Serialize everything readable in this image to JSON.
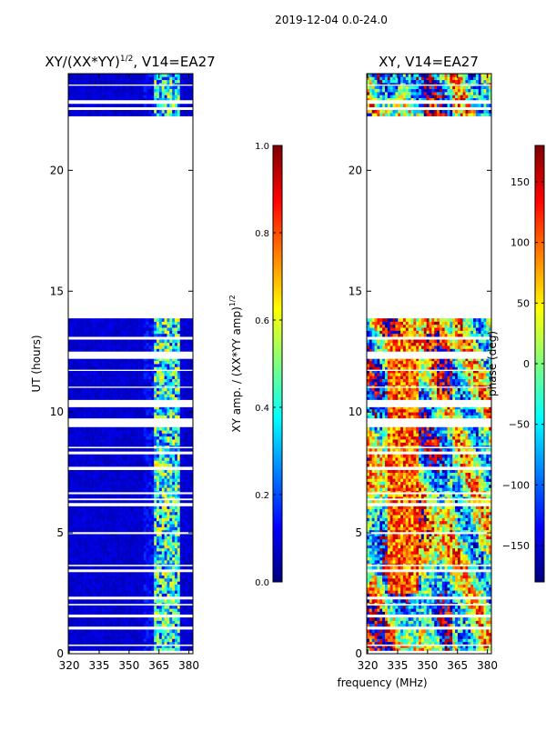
{
  "suptitle": "2019-12-04 0.0-24.0",
  "colors": {
    "jet": [
      "#00007f",
      "#0000ff",
      "#007fff",
      "#00ffff",
      "#7fff7f",
      "#ffff00",
      "#ff7f00",
      "#ff0000",
      "#7f0000"
    ],
    "background": "#ffffff",
    "axis": "#000000"
  },
  "chart_data": [
    {
      "type": "heatmap",
      "title_main": "XY/(XX*YY)",
      "title_sup": "1/2",
      "title_rest": ", V14=EA27",
      "xlabel": "",
      "ylabel": "UT (hours)",
      "xlim": [
        319.5,
        382
      ],
      "ylim": [
        0,
        24
      ],
      "x_ticks": [
        320,
        335,
        350,
        365,
        380
      ],
      "y_ticks": [
        0,
        5,
        10,
        15,
        20
      ],
      "gaps_hours": [
        [
          0.05,
          0.12
        ],
        [
          0.32,
          0.38
        ],
        [
          1.05,
          1.12
        ],
        [
          1.55,
          1.62
        ],
        [
          2.0,
          2.06
        ],
        [
          2.25,
          2.35
        ],
        [
          3.4,
          3.47
        ],
        [
          3.62,
          3.68
        ],
        [
          4.95,
          5.03
        ],
        [
          6.1,
          6.2
        ],
        [
          6.35,
          6.42
        ],
        [
          6.6,
          6.68
        ],
        [
          7.6,
          7.7
        ],
        [
          8.3,
          8.36
        ],
        [
          8.5,
          8.56
        ],
        [
          9.4,
          9.7
        ],
        [
          10.2,
          10.5
        ],
        [
          11.0,
          11.05
        ],
        [
          11.7,
          11.75
        ],
        [
          12.2,
          12.5
        ],
        [
          13.0,
          13.1
        ],
        [
          13.9,
          22.2
        ],
        [
          22.5,
          22.6
        ],
        [
          22.8,
          22.9
        ],
        [
          23.5,
          23.55
        ]
      ],
      "features": "low amplitude background with bright bands near 363-375 MHz",
      "colorbar": {
        "label_main": "XY amp. / (XX*YY amp)",
        "label_sup": "1/2",
        "range": [
          0.0,
          1.0
        ],
        "ticks": [
          "0.0",
          "0.2",
          "0.4",
          "0.6",
          "0.8",
          "1.0"
        ],
        "tick_values": [
          0.0,
          0.2,
          0.4,
          0.6,
          0.8,
          1.0
        ]
      }
    },
    {
      "type": "heatmap",
      "title_main": "XY, V14=EA27",
      "xlabel": "frequency (MHz)",
      "ylabel": "",
      "xlim": [
        319.5,
        382
      ],
      "ylim": [
        0,
        24
      ],
      "x_ticks": [
        320,
        335,
        350,
        365,
        380
      ],
      "y_ticks": [
        0,
        5,
        10,
        15,
        20
      ],
      "gaps_hours": [
        [
          0.05,
          0.12
        ],
        [
          0.32,
          0.38
        ],
        [
          1.05,
          1.12
        ],
        [
          1.55,
          1.62
        ],
        [
          2.0,
          2.06
        ],
        [
          2.25,
          2.35
        ],
        [
          3.4,
          3.47
        ],
        [
          3.62,
          3.68
        ],
        [
          4.95,
          5.03
        ],
        [
          6.1,
          6.2
        ],
        [
          6.35,
          6.42
        ],
        [
          6.6,
          6.68
        ],
        [
          7.6,
          7.7
        ],
        [
          8.3,
          8.36
        ],
        [
          8.5,
          8.56
        ],
        [
          9.4,
          9.7
        ],
        [
          10.2,
          10.5
        ],
        [
          11.0,
          11.05
        ],
        [
          11.7,
          11.75
        ],
        [
          12.2,
          12.5
        ],
        [
          13.0,
          13.1
        ],
        [
          13.9,
          22.2
        ],
        [
          22.5,
          22.6
        ],
        [
          22.8,
          22.9
        ],
        [
          23.5,
          23.55
        ]
      ],
      "features": "phase varying across the full color range, structure change near 362 MHz",
      "colorbar": {
        "label_main": "phase (deg)",
        "range": [
          -180,
          180
        ],
        "ticks": [
          "−150",
          "−100",
          "−50",
          "0",
          "50",
          "100",
          "150"
        ],
        "tick_values": [
          -150,
          -100,
          -50,
          0,
          50,
          100,
          150
        ]
      }
    }
  ]
}
